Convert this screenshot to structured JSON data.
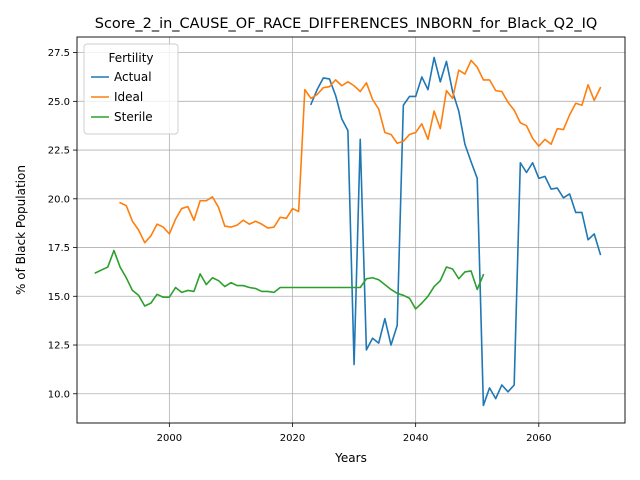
{
  "chart_data": {
    "type": "line",
    "title": "Score_2_in_CAUSE_OF_RACE_DIFFERENCES_INBORN_for_Black_Q2_IQ",
    "xlabel": "Years",
    "ylabel": "% of Black Population",
    "xlim": [
      1985,
      2074
    ],
    "ylim": [
      8.5,
      28.3
    ],
    "x_ticks": [
      2000,
      2020,
      2040,
      2060
    ],
    "y_ticks": [
      10.0,
      12.5,
      15.0,
      17.5,
      20.0,
      22.5,
      25.0,
      27.5
    ],
    "x_tick_labels": [
      "2000",
      "2020",
      "2040",
      "2060"
    ],
    "y_tick_labels": [
      "10.0",
      "12.5",
      "15.0",
      "17.5",
      "20.0",
      "22.5",
      "25.0",
      "27.5"
    ],
    "grid": true,
    "legend": {
      "title": "Fertility",
      "placement": "top-left"
    },
    "series": [
      {
        "name": "Actual",
        "color": "#1f77b4",
        "x": [
          2023,
          2024,
          2025,
          2026,
          2027,
          2028,
          2029,
          2030,
          2031,
          2032,
          2033,
          2034,
          2035,
          2036,
          2037,
          2038,
          2039,
          2040,
          2041,
          2042,
          2043,
          2044,
          2045,
          2046,
          2047,
          2048,
          2049,
          2050,
          2051,
          2052,
          2053,
          2054,
          2055,
          2056,
          2057,
          2058,
          2059,
          2060,
          2061,
          2062,
          2063,
          2064,
          2065,
          2066,
          2067,
          2068,
          2069,
          2070
        ],
        "y": [
          24.85,
          25.6,
          26.2,
          26.15,
          25.3,
          24.1,
          23.5,
          11.5,
          23.05,
          12.25,
          12.85,
          12.6,
          13.85,
          12.5,
          13.5,
          24.8,
          25.25,
          25.25,
          26.25,
          25.6,
          27.25,
          26.0,
          27.05,
          25.5,
          24.5,
          22.8,
          21.9,
          21.05,
          9.4,
          10.3,
          9.75,
          10.45,
          10.1,
          10.45,
          21.85,
          21.35,
          21.85,
          21.05,
          21.15,
          20.5,
          20.55,
          20.05,
          20.25,
          19.3,
          19.3,
          17.9,
          18.2,
          17.15
        ]
      },
      {
        "name": "Ideal",
        "color": "#ff7f0e",
        "x": [
          1992,
          1993,
          1994,
          1995,
          1996,
          1997,
          1998,
          1999,
          2000,
          2001,
          2002,
          2003,
          2004,
          2005,
          2006,
          2007,
          2008,
          2009,
          2010,
          2011,
          2012,
          2013,
          2014,
          2015,
          2016,
          2017,
          2018,
          2019,
          2020,
          2021,
          2022,
          2023,
          2024,
          2025,
          2026,
          2027,
          2028,
          2029,
          2030,
          2031,
          2032,
          2033,
          2034,
          2035,
          2036,
          2037,
          2038,
          2039,
          2040,
          2041,
          2042,
          2043,
          2044,
          2045,
          2046,
          2047,
          2048,
          2049,
          2050,
          2051,
          2052,
          2053,
          2054,
          2055,
          2056,
          2057,
          2058,
          2059,
          2060,
          2061,
          2062,
          2063,
          2064,
          2065,
          2066,
          2067,
          2068,
          2069,
          2070
        ],
        "y": [
          19.8,
          19.65,
          18.85,
          18.4,
          17.75,
          18.1,
          18.7,
          18.55,
          18.2,
          18.95,
          19.5,
          19.6,
          18.9,
          19.9,
          19.9,
          20.1,
          19.55,
          18.6,
          18.55,
          18.65,
          18.9,
          18.7,
          18.85,
          18.7,
          18.5,
          18.55,
          19.05,
          19.0,
          19.5,
          19.35,
          25.6,
          25.15,
          25.35,
          25.7,
          25.75,
          26.1,
          25.8,
          26.0,
          25.8,
          25.5,
          25.95,
          25.1,
          24.6,
          23.4,
          23.3,
          22.85,
          22.95,
          23.3,
          23.4,
          23.85,
          23.05,
          24.5,
          23.6,
          25.55,
          25.15,
          26.6,
          26.4,
          27.1,
          26.75,
          26.1,
          26.1,
          25.55,
          25.5,
          24.95,
          24.55,
          23.9,
          23.75,
          23.1,
          22.7,
          23.05,
          22.8,
          23.6,
          23.55,
          24.3,
          24.9,
          24.8,
          25.85,
          25.05,
          25.7
        ]
      },
      {
        "name": "Sterile",
        "color": "#2ca02c",
        "x": [
          1988,
          1989,
          1990,
          1991,
          1992,
          1993,
          1994,
          1995,
          1996,
          1997,
          1998,
          1999,
          2000,
          2001,
          2002,
          2003,
          2004,
          2005,
          2006,
          2007,
          2008,
          2009,
          2010,
          2011,
          2012,
          2013,
          2014,
          2015,
          2016,
          2017,
          2018,
          2019,
          2020,
          2021,
          2022,
          2023,
          2024,
          2025,
          2026,
          2027,
          2028,
          2029,
          2030,
          2031,
          2032,
          2033,
          2034,
          2035,
          2036,
          2037,
          2038,
          2039,
          2040,
          2041,
          2042,
          2043,
          2044,
          2045,
          2046,
          2047,
          2048,
          2049,
          2050,
          2051
        ],
        "y": [
          16.2,
          16.35,
          16.5,
          17.35,
          16.5,
          15.95,
          15.3,
          15.05,
          14.5,
          14.65,
          15.1,
          14.95,
          14.95,
          15.45,
          15.2,
          15.3,
          15.25,
          16.15,
          15.6,
          15.95,
          15.8,
          15.5,
          15.7,
          15.55,
          15.55,
          15.45,
          15.4,
          15.25,
          15.25,
          15.2,
          15.45,
          15.45,
          15.45,
          15.45,
          15.45,
          15.45,
          15.45,
          15.45,
          15.45,
          15.45,
          15.45,
          15.45,
          15.45,
          15.45,
          15.9,
          15.95,
          15.85,
          15.6,
          15.35,
          15.15,
          15.05,
          14.9,
          14.35,
          14.65,
          15.0,
          15.5,
          15.8,
          16.5,
          16.4,
          15.9,
          16.25,
          16.3,
          15.35,
          16.1
        ]
      }
    ]
  }
}
